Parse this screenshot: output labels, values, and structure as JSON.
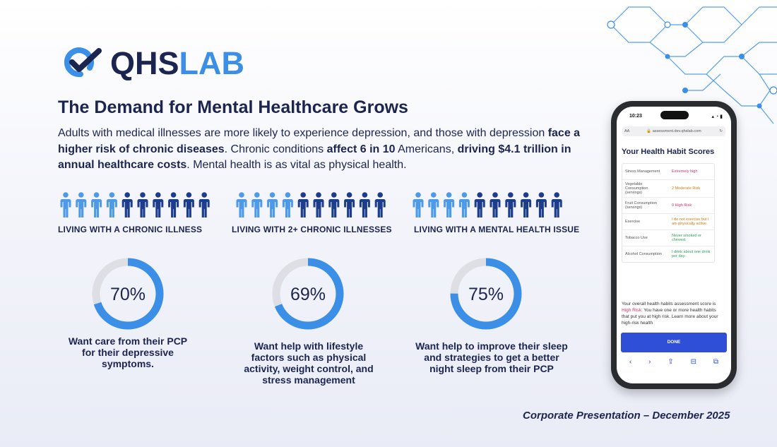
{
  "colors": {
    "navy": "#1b2550",
    "brand_blue": "#3b8fe6",
    "light_person": "#4d9ae8",
    "dark_person": "#1c3c8c",
    "ring_blue": "#3b8fe6",
    "ring_gray": "#dedfe4"
  },
  "logo": {
    "text_dark": "QHS",
    "text_light": "LAB",
    "icon": "qhs-check-icon"
  },
  "headline": "The Demand for Mental Healthcare Grows",
  "intro": {
    "p1": "Adults with medical illnesses are more likely to experience depression, and those with depression ",
    "b1": "face a higher risk of chronic diseases",
    "p2": ". Chronic conditions ",
    "b2": "affect 6 in 10",
    "p3": " Americans, ",
    "b3": "driving $4.1 trillion in annual healthcare costs",
    "p4": ". Mental health is as vital as physical health."
  },
  "people_groups": [
    {
      "label": "LIVING WITH A CHRONIC ILLNESS",
      "total": 10,
      "highlighted": 6
    },
    {
      "label": "LIVING WITH 2+ CHRONIC ILLNESSES",
      "total": 10,
      "highlighted": 6
    },
    {
      "label": "LIVING WITH A MENTAL HEALTH ISSUE",
      "total": 10,
      "highlighted": 6
    }
  ],
  "stats": [
    {
      "value": 70,
      "label": "70%",
      "caption": [
        "Want care from their PCP",
        "for their depressive",
        "symptoms."
      ]
    },
    {
      "value": 69,
      "label": "69%",
      "caption": [
        "Want help with lifestyle",
        "factors such as physical",
        "activity, weight control, and",
        "stress management"
      ]
    },
    {
      "value": 75,
      "label": "75%",
      "caption": [
        "Want help to improve their sleep",
        "and strategies to get a better",
        "night sleep from their PCP"
      ]
    }
  ],
  "phone": {
    "time": "10:23",
    "font_size_btn": "AA",
    "url": "assessment.dev.qhslab.com",
    "title": "Your Health Habit Scores",
    "rows": [
      {
        "k": "Stress Management",
        "v": "Extremely high",
        "color": "#d0306e"
      },
      {
        "k": "Vegetable Consumption (servings)",
        "v": "2 Moderate Risk",
        "color": "#e07a10"
      },
      {
        "k": "Fruit Consumption (servings)",
        "v": "0 High Risk",
        "color": "#d0306e"
      },
      {
        "k": "Exercise",
        "v": "I do not exercise but I am physically active.",
        "color": "#e07a10"
      },
      {
        "k": "Tobacco Use",
        "v": "Never smoked or chewed.",
        "color": "#2ea15a"
      },
      {
        "k": "Alcohol Consumption",
        "v": "I drink about one drink per day.",
        "color": "#2ea15a"
      }
    ],
    "summary_pre": "Your overall health habits assessment score is ",
    "summary_risk": "High Risk",
    "summary_post": ": You have one or more health habits that put you at high risk. Learn more about your high-risk health",
    "done_label": "DONE"
  },
  "footer": "Corporate Presentation – December 2025"
}
